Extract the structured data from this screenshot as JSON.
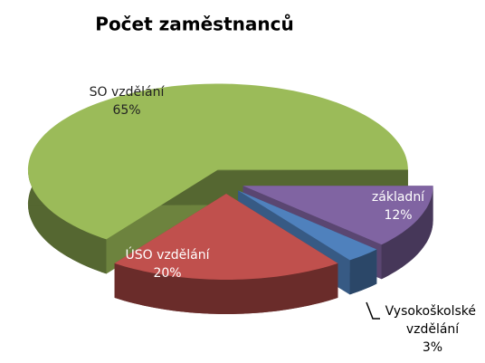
{
  "chart_data": {
    "type": "pie",
    "title": "Počet zaměstnanců",
    "categories": [
      "základní",
      "Vysokoškolské vzdělání",
      "ÚSO vzdělání",
      "SO vzdělání"
    ],
    "values": [
      12,
      3,
      20,
      65
    ],
    "value_labels": [
      "12%",
      "3%",
      "20%",
      "65%"
    ],
    "colors": [
      "#8064a2",
      "#4f81bd",
      "#c0504d",
      "#9bbb59"
    ]
  }
}
